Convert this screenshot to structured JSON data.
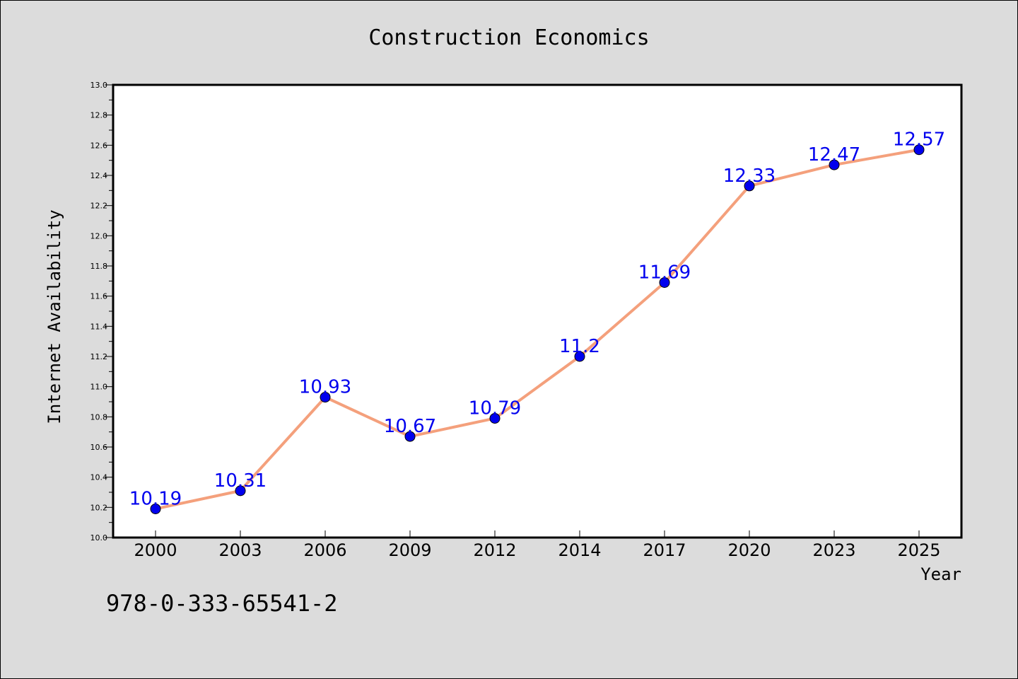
{
  "chart_data": {
    "type": "line",
    "title": "Construction Economics",
    "xlabel": "Year",
    "ylabel": "Internet Availability",
    "categories": [
      "2000",
      "2003",
      "2006",
      "2009",
      "2012",
      "2014",
      "2017",
      "2020",
      "2023",
      "2025"
    ],
    "series": [
      {
        "values": [
          10.19,
          10.31,
          10.93,
          10.67,
          10.79,
          11.2,
          11.69,
          12.33,
          12.47,
          12.57
        ],
        "labels": [
          "10.19",
          "10.31",
          "10.93",
          "10.67",
          "10.79",
          "11.2",
          "11.69",
          "12.33",
          "12.47",
          "12.57"
        ],
        "line_color": "#f4a07c",
        "marker_color": "#0000ee",
        "label_color": "#0000ee"
      }
    ],
    "ylim": [
      10.0,
      13.0
    ],
    "yticks": [
      "10.0",
      "10.2",
      "10.4",
      "10.6",
      "10.8",
      "11.0",
      "11.2",
      "11.4",
      "11.6",
      "11.8",
      "12.0",
      "12.2",
      "12.4",
      "12.6",
      "12.8",
      "13.0"
    ],
    "grid": false,
    "legend": "none",
    "background_color": "#dcdcdc",
    "plot_background_color": "#ffffff"
  },
  "footer": {
    "isbn": "978-0-333-65541-2"
  }
}
